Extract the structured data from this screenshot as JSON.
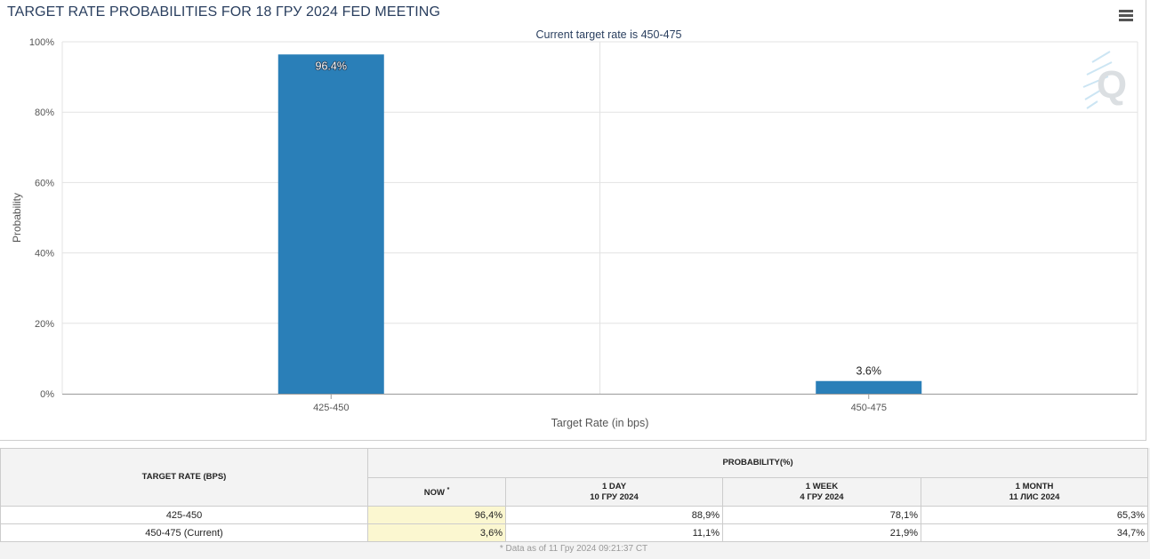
{
  "header": {
    "title": "TARGET RATE PROBABILITIES FOR 18 ГРУ 2024 FED MEETING",
    "menu_icon": "hamburger-menu-icon",
    "watermark_logo": "Q"
  },
  "chart_data": {
    "type": "bar",
    "subtitle": "Current target rate is 450-475",
    "categories": [
      "425-450",
      "450-475"
    ],
    "values": [
      96.4,
      3.6
    ],
    "value_labels": [
      "96.4%",
      "3.6%"
    ],
    "xlabel": "Target Rate (in bps)",
    "ylabel": "Probability",
    "ylim": [
      0,
      100
    ],
    "yticks": [
      0,
      20,
      40,
      60,
      80,
      100
    ],
    "ytick_labels": [
      "0%",
      "20%",
      "40%",
      "60%",
      "80%",
      "100%"
    ],
    "grid": true,
    "bar_color": "#2a7fb8"
  },
  "table": {
    "col_target": "TARGET RATE (BPS)",
    "col_probability": "PROBABILITY(%)",
    "col_now": "NOW",
    "col_now_mark": "*",
    "col_1day": "1 DAY",
    "col_1day_date": "10 ГРУ 2024",
    "col_1week": "1 WEEK",
    "col_1week_date": "4 ГРУ 2024",
    "col_1month": "1 MONTH",
    "col_1month_date": "11 ЛИС 2024",
    "rows": [
      {
        "rate": "425-450",
        "now": "96,4%",
        "day": "88,9%",
        "week": "78,1%",
        "month": "65,3%"
      },
      {
        "rate": "450-475 (Current)",
        "now": "3,6%",
        "day": "11,1%",
        "week": "21,9%",
        "month": "34,7%"
      }
    ],
    "footnote": "* Data as of 11 Гру 2024 09:21:37 CT"
  }
}
